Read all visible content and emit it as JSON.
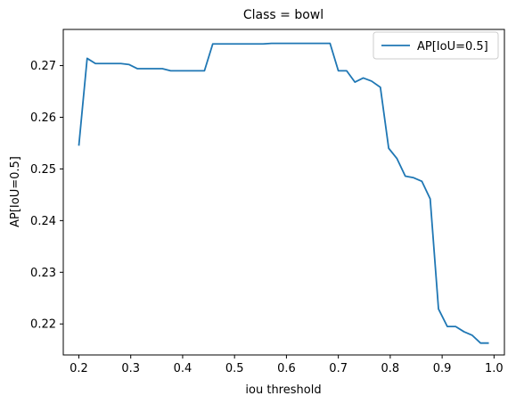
{
  "chart_data": {
    "type": "line",
    "title": "Class = bowl",
    "xlabel": "iou threshold",
    "ylabel": "AP[IoU=0.5]",
    "xlim": [
      0.17,
      1.02
    ],
    "ylim": [
      0.214,
      0.277
    ],
    "xticks": [
      0.2,
      0.3,
      0.4,
      0.5,
      0.6,
      0.7,
      0.8,
      0.9,
      1.0
    ],
    "xtick_labels": [
      "0.2",
      "0.3",
      "0.4",
      "0.5",
      "0.6",
      "0.7",
      "0.8",
      "0.9",
      "1.0"
    ],
    "yticks": [
      0.22,
      0.23,
      0.24,
      0.25,
      0.26,
      0.27
    ],
    "ytick_labels": [
      "0.22",
      "0.23",
      "0.24",
      "0.25",
      "0.26",
      "0.27"
    ],
    "grid": false,
    "legend": {
      "placement": "top-right",
      "entries": [
        "AP[IoU=0.5]"
      ]
    },
    "series": [
      {
        "name": "AP[IoU=0.5]",
        "color": "#1f77b4",
        "x": [
          0.2,
          0.216,
          0.232,
          0.248,
          0.265,
          0.281,
          0.297,
          0.313,
          0.329,
          0.345,
          0.361,
          0.377,
          0.394,
          0.41,
          0.426,
          0.442,
          0.458,
          0.474,
          0.49,
          0.506,
          0.523,
          0.539,
          0.555,
          0.571,
          0.587,
          0.603,
          0.619,
          0.635,
          0.652,
          0.668,
          0.684,
          0.7,
          0.716,
          0.732,
          0.748,
          0.764,
          0.781,
          0.797,
          0.813,
          0.829,
          0.845,
          0.861,
          0.877,
          0.893,
          0.91,
          0.926,
          0.942,
          0.958,
          0.974,
          0.99
        ],
        "y": [
          0.2545,
          0.2714,
          0.2704,
          0.2704,
          0.2704,
          0.2704,
          0.2702,
          0.2694,
          0.2694,
          0.2694,
          0.2694,
          0.269,
          0.269,
          0.269,
          0.269,
          0.269,
          0.2742,
          0.2742,
          0.2742,
          0.2742,
          0.2742,
          0.2742,
          0.2742,
          0.2743,
          0.2743,
          0.2743,
          0.2743,
          0.2743,
          0.2743,
          0.2743,
          0.2743,
          0.269,
          0.269,
          0.2668,
          0.2676,
          0.267,
          0.2658,
          0.254,
          0.252,
          0.2486,
          0.2483,
          0.2476,
          0.2442,
          0.2229,
          0.2195,
          0.2195,
          0.2185,
          0.2178,
          0.2163,
          0.2163
        ]
      }
    ]
  }
}
